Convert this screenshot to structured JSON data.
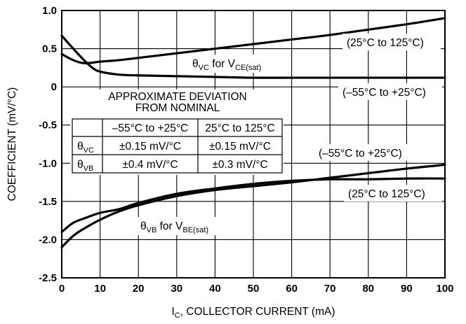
{
  "chart_data": {
    "type": "line",
    "xlabel": {
      "main": "I",
      "sub": "C",
      "rest": ", COLLECTOR CURRENT (mA)"
    },
    "ylabel": "COEFFICIENT (mV/°C)",
    "xlim": [
      0,
      100
    ],
    "ylim": [
      -2.5,
      1.0
    ],
    "grid": true,
    "x_ticks": [
      "0",
      "10",
      "20",
      "30",
      "40",
      "50",
      "60",
      "70",
      "80",
      "90",
      "100"
    ],
    "y_ticks": [
      "1.0",
      "0.5",
      "0",
      "-0.5",
      "-1.0",
      "-1.5",
      "-2.0",
      "-2.5"
    ],
    "series": [
      {
        "id": "vc_hot",
        "name": "(25°C to 125°C)",
        "x": [
          0,
          3,
          6,
          8,
          10,
          15,
          20,
          30,
          40,
          50,
          60,
          70,
          80,
          90,
          100
        ],
        "y": [
          0.67,
          0.5,
          0.34,
          0.25,
          0.2,
          0.16,
          0.15,
          0.14,
          0.13,
          0.12,
          0.12,
          0.12,
          0.12,
          0.12,
          0.12
        ]
      },
      {
        "id": "vc_cold",
        "name": "(–55°C to +25°C)",
        "x": [
          0,
          3,
          6,
          10,
          15,
          20,
          30,
          40,
          50,
          60,
          70,
          80,
          90,
          100
        ],
        "y": [
          0.43,
          0.35,
          0.31,
          0.33,
          0.35,
          0.38,
          0.44,
          0.5,
          0.56,
          0.62,
          0.68,
          0.75,
          0.82,
          0.9
        ]
      },
      {
        "id": "vb_cold",
        "name": "(–55°C to +25°C)",
        "x": [
          0,
          3,
          6,
          10,
          15,
          20,
          30,
          40,
          50,
          60,
          70,
          80,
          90,
          100
        ],
        "y": [
          -2.1,
          -1.95,
          -1.85,
          -1.74,
          -1.63,
          -1.55,
          -1.43,
          -1.35,
          -1.3,
          -1.25,
          -1.19,
          -1.13,
          -1.07,
          -1.02
        ]
      },
      {
        "id": "vb_hot",
        "name": "(25°C to 125°C)",
        "x": [
          0,
          3,
          6,
          10,
          15,
          20,
          30,
          40,
          50,
          60,
          70,
          80,
          90,
          100
        ],
        "y": [
          -1.9,
          -1.78,
          -1.72,
          -1.65,
          -1.6,
          -1.52,
          -1.4,
          -1.33,
          -1.27,
          -1.23,
          -1.21,
          -1.21,
          -1.2,
          -1.2
        ]
      }
    ],
    "annotations": {
      "theta_vc": {
        "theta": "θ",
        "theta_sub": "VC",
        "mid": " for V",
        "v_sub": "CE(sat)"
      },
      "theta_vb": {
        "theta": "θ",
        "theta_sub": "VB",
        "mid": " for V",
        "v_sub": "BE(sat)"
      },
      "label_vc_hot": "(25°C to 125°C)",
      "label_vc_cold": "(–55°C to +25°C)",
      "label_vb_cold": "(–55°C to +25°C)",
      "label_vb_hot": "(25°C to 125°C)"
    },
    "table": {
      "title_line1": "APPROXIMATE DEVIATION",
      "title_line2": "FROM NOMINAL",
      "columns": [
        "",
        "–55°C to +25°C",
        "25°C to 125°C"
      ],
      "rows": [
        {
          "theta": "θ",
          "sub": "VC",
          "values": [
            "±0.15 mV/°C",
            "±0.15 mV/°C"
          ]
        },
        {
          "theta": "θ",
          "sub": "VB",
          "values": [
            "±0.4 mV/°C",
            "±0.3 mV/°C"
          ]
        }
      ]
    }
  }
}
